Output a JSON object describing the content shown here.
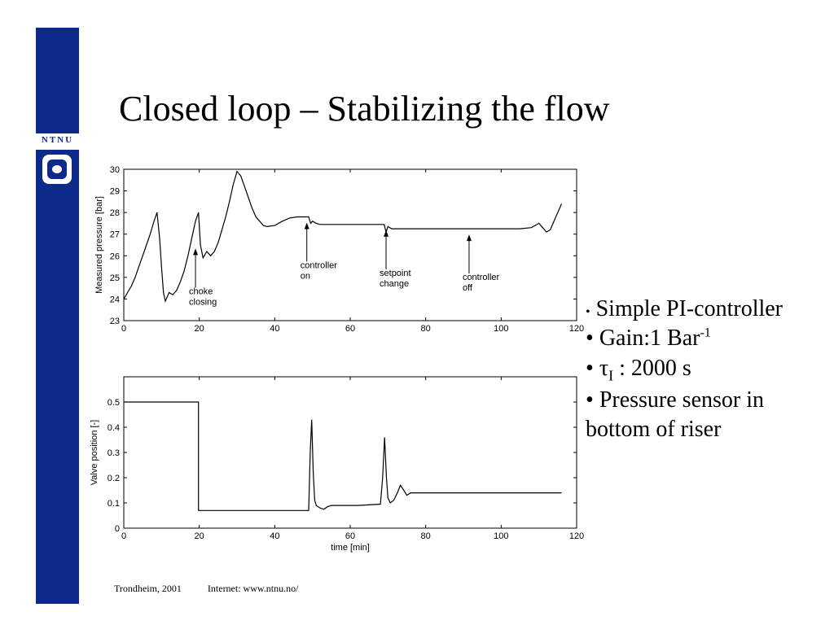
{
  "title": "Closed loop – Stabilizing the flow",
  "logo": {
    "text": "NTNU"
  },
  "bullets": [
    {
      "prefix": "•",
      "text": "Simple PI-controller",
      "small": true
    },
    {
      "prefix": "•",
      "text": "Gain:1 Bar",
      "sup": "-1"
    },
    {
      "prefix": "•",
      "text": "τ",
      "sub": "I",
      "after": " : 2000 s"
    },
    {
      "prefix": "•",
      "text": "Pressure sensor in"
    },
    {
      "prefix": "",
      "text": "bottom of riser"
    }
  ],
  "footer": {
    "left": "Trondheim, 2001",
    "right": "Internet: www.ntnu.no/"
  },
  "colors": {
    "sidebar": "#0d2a8a",
    "line": "#000000"
  },
  "chart_data": [
    {
      "type": "line",
      "xlabel": "",
      "ylabel": "Measured pressure [bar]",
      "xlim": [
        0,
        120
      ],
      "ylim": [
        23,
        30
      ],
      "xticks": [
        0,
        20,
        40,
        60,
        80,
        100,
        120
      ],
      "yticks": [
        23,
        24,
        25,
        26,
        27,
        28,
        29,
        30
      ],
      "grid": false,
      "series": [
        {
          "values": [
            [
              0,
              24
            ],
            [
              1,
              24.3
            ],
            [
              2,
              24.6
            ],
            [
              3,
              25
            ],
            [
              4,
              25.5
            ],
            [
              5,
              26
            ],
            [
              6,
              26.5
            ],
            [
              7,
              27
            ],
            [
              8,
              27.6
            ],
            [
              8.8,
              28
            ],
            [
              9.5,
              26.8
            ],
            [
              10,
              25.5
            ],
            [
              10.5,
              24.3
            ],
            [
              11,
              23.9
            ],
            [
              12,
              24.3
            ],
            [
              13,
              24.2
            ],
            [
              14,
              24.4
            ],
            [
              15,
              24.8
            ],
            [
              16,
              25.3
            ],
            [
              17,
              26
            ],
            [
              18,
              26.8
            ],
            [
              19,
              27.6
            ],
            [
              19.8,
              28
            ],
            [
              20.3,
              26.5
            ],
            [
              21,
              25.9
            ],
            [
              22,
              26.2
            ],
            [
              23,
              26
            ],
            [
              24,
              26.2
            ],
            [
              25,
              26.6
            ],
            [
              26,
              27.2
            ],
            [
              27,
              27.8
            ],
            [
              28,
              28.5
            ],
            [
              29,
              29.3
            ],
            [
              30,
              29.9
            ],
            [
              31,
              29.7
            ],
            [
              32,
              29.2
            ],
            [
              33,
              28.7
            ],
            [
              34,
              28.2
            ],
            [
              35,
              27.8
            ],
            [
              36,
              27.6
            ],
            [
              37,
              27.4
            ],
            [
              38,
              27.35
            ],
            [
              40,
              27.4
            ],
            [
              42,
              27.6
            ],
            [
              44,
              27.75
            ],
            [
              46,
              27.8
            ],
            [
              49,
              27.8
            ],
            [
              49.5,
              27.5
            ],
            [
              50,
              27.6
            ],
            [
              51,
              27.5
            ],
            [
              52,
              27.45
            ],
            [
              55,
              27.45
            ],
            [
              60,
              27.45
            ],
            [
              65,
              27.45
            ],
            [
              69,
              27.45
            ],
            [
              69.5,
              27.1
            ],
            [
              70,
              27.35
            ],
            [
              71,
              27.25
            ],
            [
              73,
              27.25
            ],
            [
              80,
              27.25
            ],
            [
              90,
              27.25
            ],
            [
              100,
              27.25
            ],
            [
              105,
              27.25
            ],
            [
              108,
              27.3
            ],
            [
              109,
              27.4
            ],
            [
              110,
              27.5
            ],
            [
              111,
              27.3
            ],
            [
              112,
              27.1
            ],
            [
              113,
              27.2
            ],
            [
              114,
              27.6
            ],
            [
              115,
              28
            ],
            [
              116,
              28.4
            ]
          ]
        }
      ],
      "annotations": [
        {
          "lines": [
            "choke",
            "closing"
          ],
          "x": 19,
          "y": 26.6
        },
        {
          "lines": [
            "controller",
            "on"
          ],
          "x": 48.5,
          "y": 27.8
        },
        {
          "lines": [
            "setpoint",
            "change"
          ],
          "x": 69.5,
          "y": 27.45
        },
        {
          "lines": [
            "controller",
            "off"
          ],
          "x": 91.5,
          "y": 27.25
        }
      ]
    },
    {
      "type": "line",
      "xlabel": "time [min]",
      "ylabel": "Valve position [-]",
      "xlim": [
        0,
        120
      ],
      "ylim": [
        0,
        0.6
      ],
      "xticks": [
        0,
        20,
        40,
        60,
        80,
        100,
        120
      ],
      "yticks": [
        0,
        0.1,
        0.2,
        0.3,
        0.4,
        0.5
      ],
      "grid": false,
      "series": [
        {
          "values": [
            [
              0,
              0.5
            ],
            [
              19.8,
              0.5
            ],
            [
              19.8,
              0.07
            ],
            [
              49,
              0.07
            ],
            [
              49.4,
              0.3
            ],
            [
              49.8,
              0.43
            ],
            [
              50.2,
              0.22
            ],
            [
              50.6,
              0.11
            ],
            [
              51,
              0.09
            ],
            [
              52,
              0.08
            ],
            [
              53,
              0.075
            ],
            [
              54,
              0.085
            ],
            [
              55,
              0.09
            ],
            [
              58,
              0.09
            ],
            [
              62,
              0.09
            ],
            [
              68,
              0.095
            ],
            [
              68.6,
              0.2
            ],
            [
              69.1,
              0.36
            ],
            [
              69.6,
              0.2
            ],
            [
              70,
              0.12
            ],
            [
              70.6,
              0.1
            ],
            [
              71.5,
              0.11
            ],
            [
              72.5,
              0.14
            ],
            [
              73.3,
              0.17
            ],
            [
              74.2,
              0.15
            ],
            [
              75,
              0.13
            ],
            [
              76,
              0.14
            ],
            [
              80,
              0.14
            ],
            [
              90,
              0.14
            ],
            [
              100,
              0.14
            ],
            [
              110,
              0.14
            ],
            [
              116,
              0.14
            ]
          ]
        }
      ]
    }
  ]
}
